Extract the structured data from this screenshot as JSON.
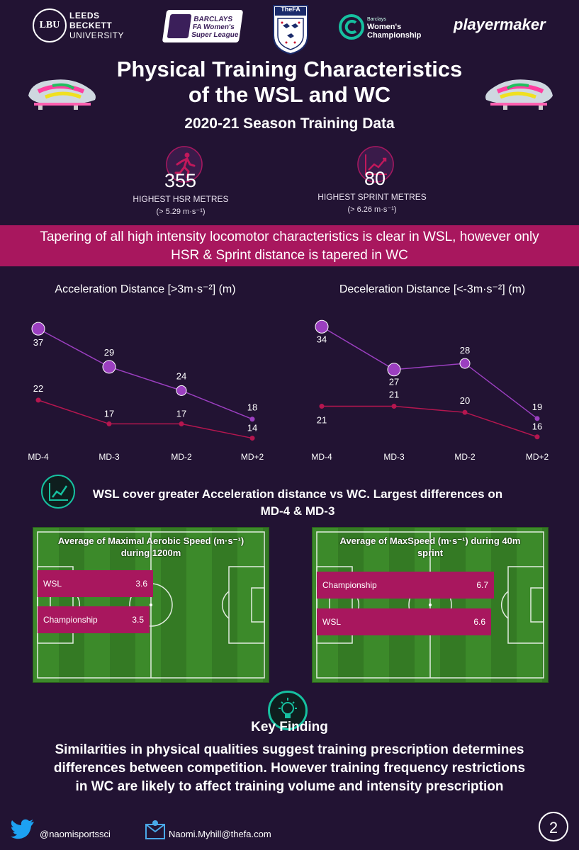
{
  "logos": {
    "lbu_mark": "LBU",
    "lbu_lines": [
      "LEEDS",
      "BECKETT",
      "UNIVERSITY"
    ],
    "wsl_lines": [
      "BARCLAYS",
      "FA Women's",
      "Super League"
    ],
    "fa": "TheFA",
    "champ_small": "Barclays",
    "champ": "Women's Championship",
    "playermaker": "playermaker"
  },
  "title_line1": "Physical Training Characteristics",
  "title_line2": "of the WSL and WC",
  "subtitle": "2020-21  Season Training Data",
  "stats": [
    {
      "icon": "runner-icon",
      "value": "355",
      "label": "HIGHEST HSR METRES",
      "sub": "(> 5.29 m·s⁻¹)"
    },
    {
      "icon": "trend-chart-icon",
      "value": "80",
      "label": "HIGHEST SPRINT METRES",
      "sub": "(> 6.26 m·s⁻¹)"
    }
  ],
  "banner_line1": "Tapering of all high intensity locomotor characteristics is clear in WSL, however only",
  "banner_line2": "HSR & Sprint distance is tapered in WC",
  "charts": {
    "acc_title": "Acceleration Distance [>3m·s⁻²] (m)",
    "dec_title": "Deceleration Distance [<-3m·s⁻²] (m)"
  },
  "chart_data": [
    {
      "type": "line",
      "title": "Acceleration Distance [>3m·s⁻²] (m)",
      "categories": [
        "MD-4",
        "MD-3",
        "MD-2",
        "MD+2"
      ],
      "series": [
        {
          "values": [
            37,
            29,
            24,
            18
          ],
          "color": "#9b3fc0"
        },
        {
          "values": [
            22,
            17,
            17,
            14
          ],
          "color": "#b5164f"
        }
      ],
      "ylim": [
        12,
        40
      ]
    },
    {
      "type": "line",
      "title": "Deceleration Distance [<-3m·s⁻²] (m)",
      "categories": [
        "MD-4",
        "MD-3",
        "MD-2",
        "MD+2"
      ],
      "series": [
        {
          "values": [
            34,
            27,
            28,
            19
          ],
          "color": "#9b3fc0"
        },
        {
          "values": [
            21,
            21,
            20,
            16
          ],
          "color": "#b5164f"
        }
      ],
      "ylim": [
        14,
        36
      ]
    },
    {
      "type": "bar",
      "title": "Average of Maximal Aerobic Speed (m·s⁻¹) during 1200m",
      "categories": [
        "WSL",
        "Championship"
      ],
      "values": [
        3.6,
        3.5
      ]
    },
    {
      "type": "bar",
      "title": "Average of MaxSpeed (m·s⁻¹) during 40m sprint",
      "categories": [
        "Championship",
        "WSL"
      ],
      "values": [
        6.7,
        6.6
      ]
    }
  ],
  "insight_line1": "WSL cover greater Acceleration distance vs WC. Largest differences on",
  "insight_line2": "MD-4 & MD-3",
  "pitch1": {
    "title_line1": "Average of Maximal Aerobic Speed (m·s⁻¹)",
    "title_line2": "during 1200m",
    "bars": [
      {
        "label": "WSL",
        "value": "3.6"
      },
      {
        "label": "Championship",
        "value": "3.5"
      }
    ]
  },
  "pitch2": {
    "title_line1": "Average of MaxSpeed (m·s⁻¹) during 40m",
    "title_line2": "sprint",
    "bars": [
      {
        "label": "Championship",
        "value": "6.7"
      },
      {
        "label": "WSL",
        "value": "6.6"
      }
    ]
  },
  "key": {
    "title": "Key Finding",
    "line1": "Similarities in physical qualities suggest training prescription determines",
    "line2": "differences between competition. However training frequency restrictions",
    "line3": "in WC are likely to affect training volume and intensity prescription"
  },
  "footer": {
    "twitter": "@naomisportssci",
    "email": "Naomi.Myhill@thefa.com",
    "page": "2"
  },
  "colors": {
    "background": "#221333",
    "accent": "#a8175e",
    "wsl_line": "#9b3fc0",
    "wc_line": "#b5164f",
    "teal": "#16c0a0"
  }
}
